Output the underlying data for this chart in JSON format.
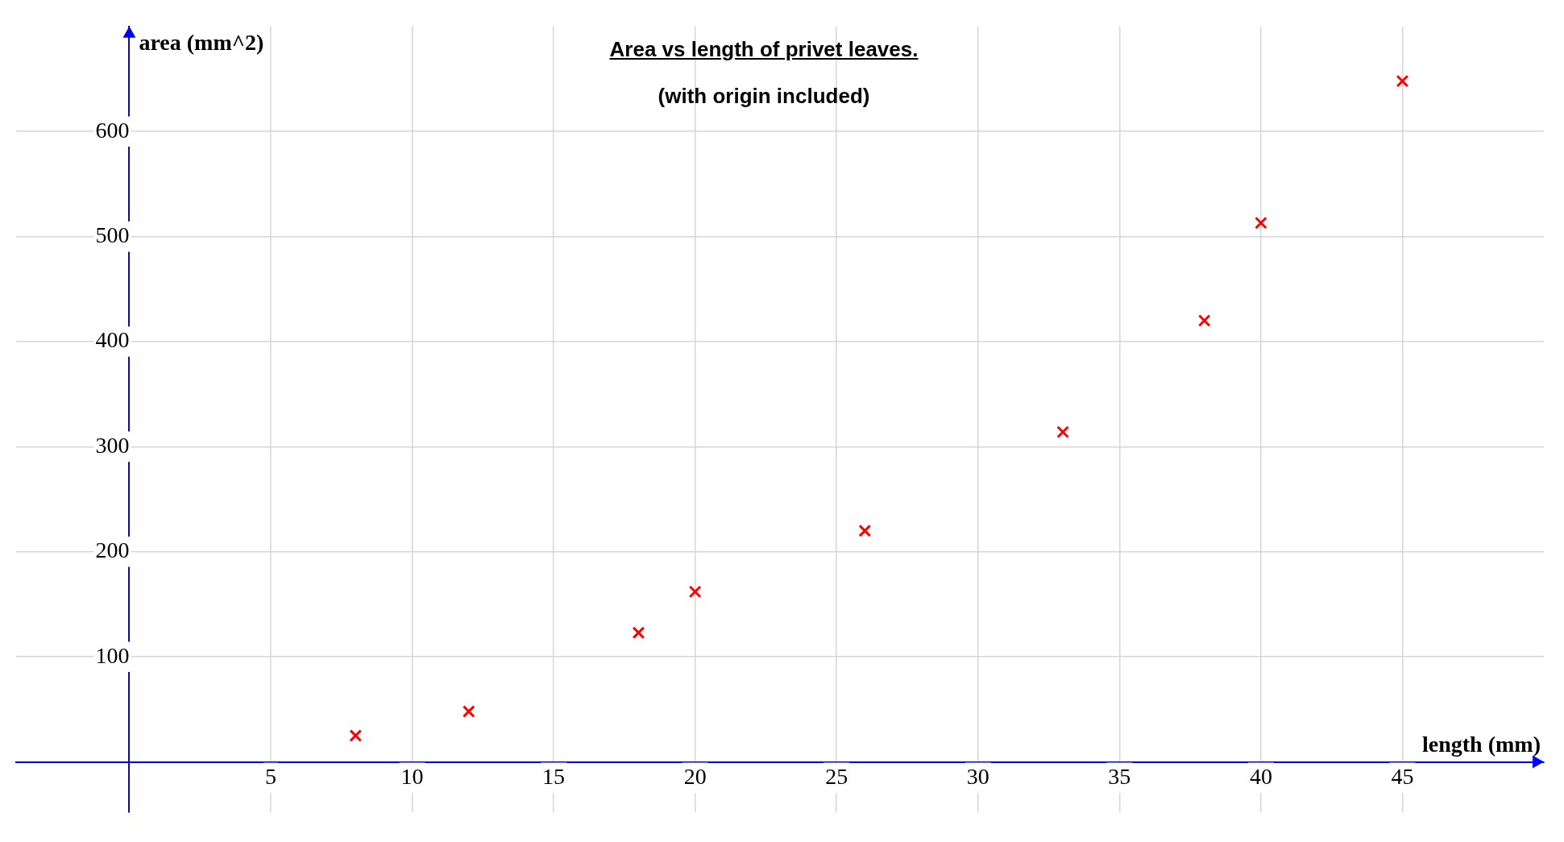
{
  "chart_data": {
    "type": "scatter",
    "title": "Area vs length of privet leaves.",
    "subtitle": "(with origin included)",
    "xlabel": "length (mm)",
    "ylabel": "area (mm^2)",
    "x": [
      8,
      12,
      18,
      20,
      26,
      33,
      38,
      40,
      45
    ],
    "series": [
      {
        "color": "#ff0000",
        "values": [
          25,
          48,
          123,
          162,
          220,
          314,
          420,
          513,
          648
        ]
      }
    ],
    "xlim": [
      -4,
      50
    ],
    "ylim": [
      -48,
      700
    ],
    "xticks": [
      5,
      10,
      15,
      20,
      25,
      30,
      35,
      40,
      45
    ],
    "yticks": [
      100,
      200,
      300,
      400,
      500,
      600
    ],
    "grid": true,
    "legend": false,
    "marker": "cross"
  }
}
